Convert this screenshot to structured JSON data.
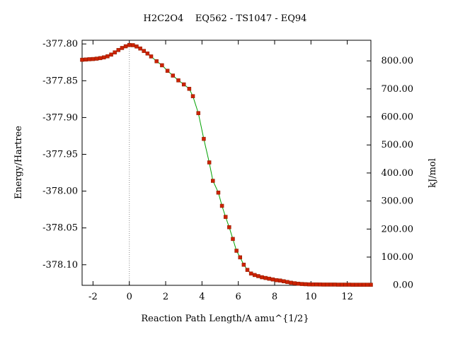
{
  "chart_data": {
    "type": "line",
    "title": "H2C2O4    EQ562 - TS1047 - EQ94",
    "xlabel": "Reaction Path Length/A amu^{1/2}",
    "ylabel": "Energy/Hartree",
    "y2label": "kJ/mol",
    "xlim": [
      -2.6,
      13.3
    ],
    "ylim": [
      -378.128,
      -377.795
    ],
    "y2lim": [
      -0.8,
      873.5
    ],
    "grid": false,
    "legend": "none",
    "x_ticks": [
      -2,
      0,
      2,
      4,
      6,
      8,
      10,
      12
    ],
    "x_tick_labels": [
      "-2",
      "0",
      "2",
      "4",
      "6",
      "8",
      "10",
      "12"
    ],
    "y_ticks": [
      -377.8,
      -377.85,
      -377.9,
      -377.95,
      -378.0,
      -378.05,
      -378.1
    ],
    "y_tick_labels": [
      "-377.80",
      "-377.85",
      "-377.90",
      "-377.95",
      "-378.00",
      "-378.05",
      "-378.10"
    ],
    "y2_ticks": [
      0,
      100,
      200,
      300,
      400,
      500,
      600,
      700,
      800
    ],
    "y2_tick_labels": [
      "0.00",
      "100.00",
      "200.00",
      "300.00",
      "400.00",
      "500.00",
      "600.00",
      "700.00",
      "800.00"
    ],
    "ts_marker_x": 0,
    "colors": {
      "line": "#00a000",
      "points": "#cc2200",
      "ts_line": "#888888",
      "axis": "#000000"
    },
    "series": [
      {
        "x": [
          -2.6,
          -2.4,
          -2.2,
          -2.0,
          -1.8,
          -1.6,
          -1.4,
          -1.2,
          -1.0,
          -0.8,
          -0.6,
          -0.4,
          -0.2,
          0.0,
          0.2,
          0.4,
          0.6,
          0.8,
          1.0,
          1.2,
          1.5,
          1.8,
          2.1,
          2.4,
          2.7,
          3.0,
          3.3,
          3.5,
          3.8,
          4.1,
          4.4,
          4.6,
          4.9,
          5.1,
          5.3,
          5.5,
          5.7,
          5.9,
          6.1,
          6.3,
          6.5,
          6.7,
          6.9,
          7.1,
          7.3,
          7.5,
          7.7,
          7.9,
          8.1,
          8.3,
          8.5,
          8.7,
          8.9,
          9.1,
          9.3,
          9.5,
          9.7,
          9.9,
          10.1,
          10.3,
          10.5,
          10.7,
          10.9,
          11.1,
          11.3,
          11.5,
          11.7,
          11.9,
          12.1,
          12.3,
          12.5,
          12.7,
          12.9,
          13.1,
          13.3
        ],
        "y": [
          -377.8215,
          -377.8212,
          -377.8208,
          -377.8205,
          -377.82,
          -377.8193,
          -377.8183,
          -377.8168,
          -377.8145,
          -377.8115,
          -377.8083,
          -377.8055,
          -377.8032,
          -377.8015,
          -377.8017,
          -377.8035,
          -377.8062,
          -377.8095,
          -377.813,
          -377.817,
          -377.8235,
          -377.829,
          -377.8365,
          -377.843,
          -377.8495,
          -377.855,
          -377.861,
          -377.871,
          -377.894,
          -377.929,
          -377.961,
          -377.986,
          -378.002,
          -378.02,
          -378.035,
          -378.049,
          -378.065,
          -378.081,
          -378.09,
          -378.1,
          -378.107,
          -378.112,
          -378.114,
          -378.1155,
          -378.117,
          -378.118,
          -378.119,
          -378.12,
          -378.121,
          -378.1215,
          -378.1225,
          -378.1235,
          -378.1245,
          -378.1252,
          -378.1258,
          -378.1262,
          -378.1265,
          -378.1267,
          -378.1268,
          -378.1268,
          -378.1269,
          -378.127,
          -378.127,
          -378.127,
          -378.127,
          -378.1271,
          -378.1271,
          -378.1271,
          -378.1271,
          -378.1272,
          -378.1272,
          -378.1272,
          -378.1272,
          -378.1272,
          -378.1272
        ]
      }
    ]
  }
}
